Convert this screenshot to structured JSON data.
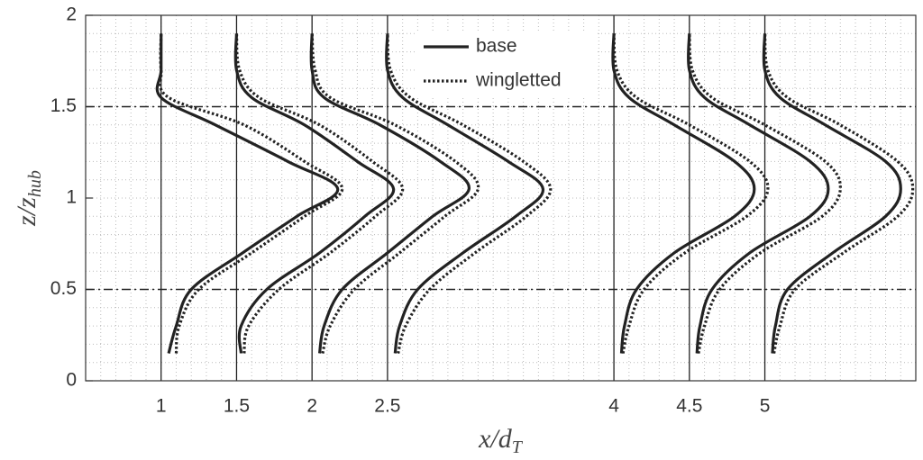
{
  "chart_data": {
    "type": "profile",
    "x_label": {
      "main": "x/d",
      "sub": "T"
    },
    "y_label": {
      "main": "z/z",
      "sub": "hub"
    },
    "xlim": [
      0.5,
      6
    ],
    "ylim": [
      0,
      2
    ],
    "xticks": [
      1,
      1.5,
      2,
      2.5,
      4,
      4.5,
      5
    ],
    "yticks": [
      0,
      0.5,
      1,
      1.5,
      2
    ],
    "minor_grid_step": 0.1,
    "reference_lines": [
      0.5,
      1.5
    ],
    "legend": "top-center",
    "z": [
      0.15,
      0.3,
      0.5,
      0.7,
      0.9,
      1.05,
      1.2,
      1.4,
      1.55,
      1.7,
      1.9
    ],
    "series": [
      {
        "name": "base",
        "color": "#222222",
        "dash": "solid",
        "profiles": [
          [
            1.05,
            1.1,
            1.2,
            1.54,
            1.9,
            2.17,
            1.84,
            1.36,
            1.0,
            1.0,
            1.0
          ],
          [
            1.53,
            1.53,
            1.7,
            2.05,
            2.35,
            2.54,
            2.3,
            1.95,
            1.6,
            1.5,
            1.5
          ],
          [
            2.05,
            2.08,
            2.2,
            2.5,
            2.8,
            3.04,
            2.85,
            2.45,
            2.08,
            2.0,
            2.0
          ],
          [
            2.55,
            2.58,
            2.7,
            3.0,
            3.35,
            3.53,
            3.3,
            2.9,
            2.6,
            2.5,
            2.5
          ],
          [
            4.05,
            4.07,
            4.15,
            4.4,
            4.8,
            4.93,
            4.8,
            4.4,
            4.1,
            4.0,
            4.0
          ],
          [
            4.55,
            4.57,
            4.65,
            4.9,
            5.3,
            5.42,
            5.3,
            4.9,
            4.6,
            4.5,
            4.5
          ],
          [
            5.05,
            5.07,
            5.15,
            5.45,
            5.8,
            5.9,
            5.8,
            5.4,
            5.1,
            5.0,
            5.0
          ]
        ]
      },
      {
        "name": "wingletted",
        "color": "#222222",
        "dash": "dotted",
        "profiles": [
          [
            1.1,
            1.12,
            1.25,
            1.6,
            1.95,
            2.2,
            1.95,
            1.55,
            1.05,
            1.0,
            1.0
          ],
          [
            1.55,
            1.58,
            1.78,
            2.12,
            2.42,
            2.6,
            2.4,
            2.05,
            1.65,
            1.52,
            1.5
          ],
          [
            2.07,
            2.12,
            2.28,
            2.58,
            2.88,
            3.1,
            2.95,
            2.55,
            2.12,
            2.02,
            2.0
          ],
          [
            2.57,
            2.62,
            2.78,
            3.08,
            3.42,
            3.58,
            3.4,
            3.0,
            2.65,
            2.52,
            2.5
          ],
          [
            4.06,
            4.1,
            4.2,
            4.47,
            4.88,
            5.02,
            4.9,
            4.5,
            4.15,
            4.02,
            4.0
          ],
          [
            4.56,
            4.6,
            4.7,
            4.97,
            5.38,
            5.5,
            5.4,
            5.0,
            4.65,
            4.52,
            4.5
          ],
          [
            5.06,
            5.1,
            5.2,
            5.52,
            5.88,
            5.98,
            5.88,
            5.5,
            5.15,
            5.02,
            5.0
          ]
        ]
      }
    ]
  }
}
